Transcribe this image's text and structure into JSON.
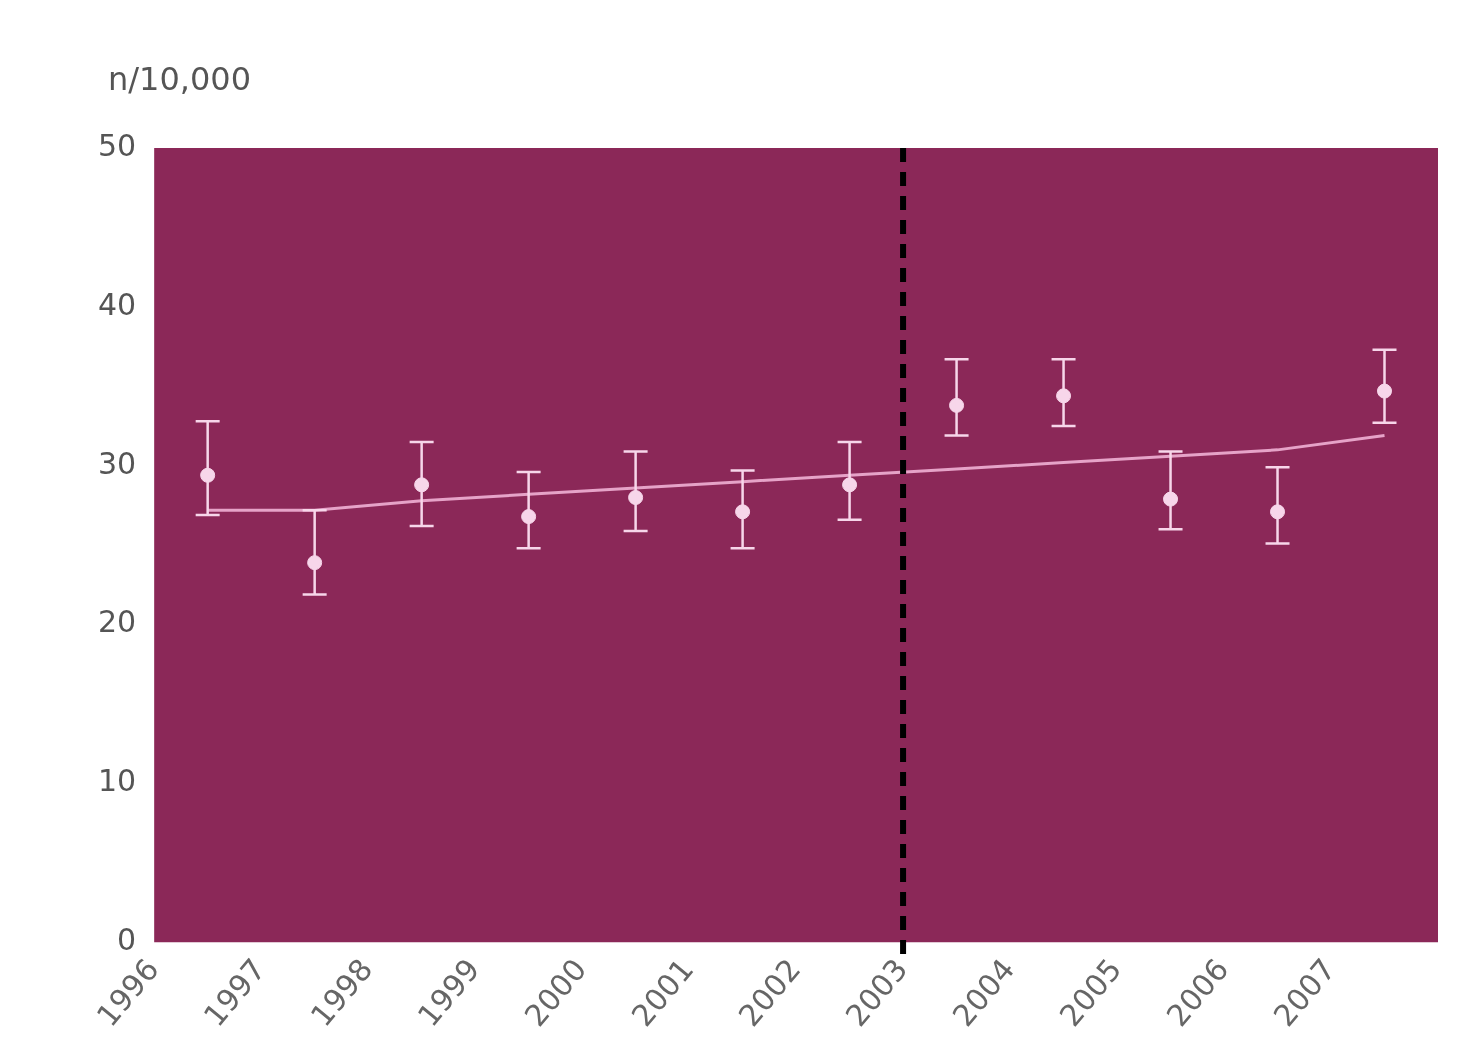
{
  "chart_data": {
    "type": "scatter",
    "ylabel": "n/10,000",
    "xlim": [
      1996,
      2008
    ],
    "xticks": [
      1996,
      1997,
      1998,
      1999,
      2000,
      2001,
      2002,
      2003,
      2004,
      2005,
      2006,
      2007
    ],
    "ylim": [
      0,
      50
    ],
    "yticks": [
      0,
      10,
      20,
      30,
      40,
      50
    ],
    "grid": false,
    "legend": false,
    "series": [
      {
        "marker": "circle",
        "color": "#f7d6ea",
        "x": [
          1996.5,
          1997.5,
          1998.5,
          1999.5,
          2000.5,
          2001.5,
          2002.5,
          2003.5,
          2004.5,
          2005.5,
          2006.5,
          2007.5
        ],
        "values": [
          29.4,
          23.9,
          28.8,
          26.8,
          28.0,
          27.1,
          28.8,
          33.8,
          34.4,
          27.9,
          27.1,
          34.7
        ],
        "errors": [
          [
            26.9,
            32.8
          ],
          [
            21.9,
            27.2
          ],
          [
            26.2,
            31.5
          ],
          [
            24.8,
            29.6
          ],
          [
            25.9,
            30.9
          ],
          [
            24.8,
            29.7
          ],
          [
            26.6,
            31.5
          ],
          [
            31.9,
            36.7
          ],
          [
            32.5,
            36.7
          ],
          [
            26.0,
            30.9
          ],
          [
            25.1,
            29.9
          ],
          [
            32.7,
            37.3
          ]
        ]
      },
      {
        "type": "line",
        "color": "#e6a3c8",
        "x": [
          1996.5,
          1997.5,
          1998.5,
          1999.5,
          2000.5,
          2001.5,
          2002.5,
          2003.5,
          2004.5,
          2005.5,
          2006.5,
          2007.5
        ],
        "values": [
          27.2,
          27.2,
          27.8,
          28.2,
          28.6,
          29.0,
          29.4,
          29.8,
          30.2,
          30.6,
          31.0,
          31.9
        ]
      }
    ],
    "ref_lines": [
      {
        "axis": "x",
        "value": 2003,
        "color": "#000000",
        "line_style": "dashed"
      }
    ]
  }
}
